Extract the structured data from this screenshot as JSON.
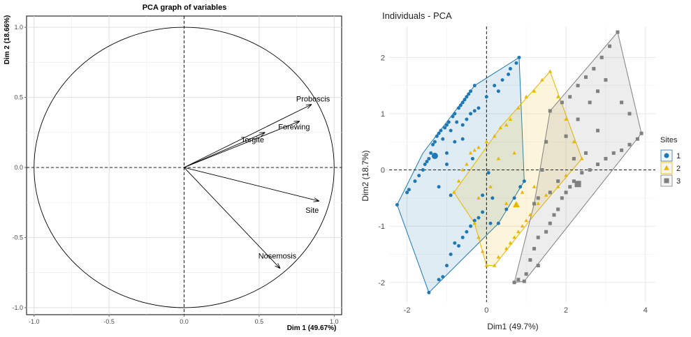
{
  "chart_data": [
    {
      "type": "scatter",
      "subtype": "pca-variable-correlation-circle",
      "title": "PCA graph of variables",
      "xlabel": "Dim 1 (49.67%)",
      "ylabel": "Dim 2 (18.66%)",
      "xlim": [
        -1.05,
        1.05
      ],
      "ylim": [
        -1.05,
        1.08
      ],
      "xticks": [
        -1.0,
        -0.5,
        0.0,
        0.5,
        1.0
      ],
      "yticks": [
        -1.0,
        -0.5,
        0.0,
        0.5,
        1.0
      ],
      "xtick_labels": [
        "-1.0",
        "-0.5",
        "0.0",
        "0.5",
        "1.0"
      ],
      "ytick_labels": [
        "-1.0",
        "-0.5",
        "0.0",
        "0.5",
        "1.0"
      ],
      "grid": true,
      "unit_circle": true,
      "variables": [
        {
          "name": "Proboscis",
          "x": 0.85,
          "y": 0.45
        },
        {
          "name": "Forewing",
          "x": 0.77,
          "y": 0.33
        },
        {
          "name": "Torgite",
          "x": 0.54,
          "y": 0.25
        },
        {
          "name": "Site",
          "x": 0.9,
          "y": -0.24
        },
        {
          "name": "Nosemosis",
          "x": 0.64,
          "y": -0.72
        }
      ]
    },
    {
      "type": "scatter",
      "title": "Individuals - PCA",
      "xlabel": "Dim1 (49.7%)",
      "ylabel": "Dim2 (18.7%)",
      "xlim": [
        -2.45,
        4.25
      ],
      "ylim": [
        -2.35,
        2.55
      ],
      "xticks": [
        -2,
        0,
        2,
        4
      ],
      "yticks": [
        -2,
        -1,
        0,
        1,
        2
      ],
      "xtick_labels": [
        "-2",
        "0",
        "2",
        "4"
      ],
      "ytick_labels": [
        "-2",
        "-1",
        "0",
        "1",
        "2"
      ],
      "grid": true,
      "legend": {
        "title": "Sites",
        "position": "right",
        "entries": [
          "1",
          "2",
          "3"
        ]
      },
      "series": [
        {
          "name": "1",
          "marker": "circle",
          "color": "#1f77b4",
          "hull": [
            [
              -2.25,
              -0.62
            ],
            [
              -1.45,
              -2.18
            ],
            [
              0.3,
              -0.95
            ],
            [
              0.95,
              -0.2
            ],
            [
              0.82,
              2.0
            ],
            [
              -0.3,
              1.5
            ],
            [
              -1.6,
              0.3
            ]
          ],
          "centroid": [
            -1.3,
            0.25
          ],
          "points": [
            [
              -2.25,
              -0.62
            ],
            [
              -2.0,
              -0.4
            ],
            [
              -1.95,
              -0.35
            ],
            [
              -1.8,
              -0.2
            ],
            [
              -1.7,
              -0.1
            ],
            [
              -1.6,
              0.0
            ],
            [
              -1.55,
              0.1
            ],
            [
              -1.5,
              0.15
            ],
            [
              -1.45,
              0.2
            ],
            [
              -1.4,
              0.3
            ],
            [
              -1.35,
              0.45
            ],
            [
              -1.3,
              0.5
            ],
            [
              -1.25,
              0.6
            ],
            [
              -1.2,
              0.65
            ],
            [
              -1.15,
              0.7
            ],
            [
              -1.1,
              0.55
            ],
            [
              -1.05,
              0.75
            ],
            [
              -1.0,
              0.8
            ],
            [
              -0.95,
              0.85
            ],
            [
              -0.9,
              0.7
            ],
            [
              -0.85,
              0.95
            ],
            [
              -0.8,
              1.0
            ],
            [
              -0.75,
              0.85
            ],
            [
              -0.7,
              1.1
            ],
            [
              -0.65,
              1.15
            ],
            [
              -0.6,
              1.2
            ],
            [
              -0.55,
              1.25
            ],
            [
              -0.5,
              1.3
            ],
            [
              -0.45,
              1.35
            ],
            [
              -0.4,
              1.4
            ],
            [
              -0.3,
              1.5
            ],
            [
              -0.6,
              0.8
            ],
            [
              -0.5,
              0.9
            ],
            [
              -0.4,
              1.0
            ],
            [
              -0.3,
              1.05
            ],
            [
              -0.2,
              1.1
            ],
            [
              0.0,
              1.3
            ],
            [
              0.2,
              1.5
            ],
            [
              0.4,
              1.6
            ],
            [
              0.6,
              1.8
            ],
            [
              0.75,
              1.9
            ],
            [
              0.82,
              2.0
            ],
            [
              0.55,
              1.7
            ],
            [
              0.3,
              1.4
            ],
            [
              -1.45,
              -2.18
            ],
            [
              -1.2,
              -1.95
            ],
            [
              -1.1,
              -1.9
            ],
            [
              -1.0,
              -1.7
            ],
            [
              -0.9,
              -1.5
            ],
            [
              -0.8,
              -1.3
            ],
            [
              -0.7,
              -1.35
            ],
            [
              -0.6,
              -1.2
            ],
            [
              -0.5,
              -1.1
            ],
            [
              -0.4,
              -1.0
            ],
            [
              -0.3,
              -0.9
            ],
            [
              -0.2,
              -0.85
            ],
            [
              -0.1,
              -0.75
            ],
            [
              0.1,
              -0.95
            ],
            [
              0.3,
              -0.95
            ],
            [
              0.5,
              -0.7
            ],
            [
              0.7,
              -0.5
            ],
            [
              0.85,
              -0.3
            ],
            [
              0.95,
              -0.2
            ],
            [
              -0.9,
              -0.45
            ],
            [
              -1.2,
              -0.3
            ],
            [
              -1.0,
              0.3
            ],
            [
              -0.8,
              0.5
            ],
            [
              -0.6,
              0.55
            ],
            [
              0.05,
              -0.05
            ],
            [
              -0.1,
              -0.45
            ],
            [
              0.15,
              -0.5
            ],
            [
              -0.35,
              0.2
            ],
            [
              -1.0,
              0.1
            ]
          ]
        },
        {
          "name": "2",
          "marker": "triangle",
          "color": "#e7b800",
          "hull": [
            [
              -0.82,
              -0.4
            ],
            [
              -0.3,
              -0.95
            ],
            [
              0.0,
              -1.7
            ],
            [
              0.2,
              -1.7
            ],
            [
              1.2,
              -0.8
            ],
            [
              2.4,
              0.2
            ],
            [
              1.6,
              1.75
            ],
            [
              0.4,
              0.8
            ]
          ],
          "centroid": [
            0.75,
            -0.62
          ],
          "points": [
            [
              -0.82,
              -0.4
            ],
            [
              -0.7,
              -0.2
            ],
            [
              -0.6,
              0.0
            ],
            [
              -0.5,
              0.1
            ],
            [
              -0.4,
              0.3
            ],
            [
              -0.3,
              0.35
            ],
            [
              -0.2,
              0.4
            ],
            [
              0.0,
              0.5
            ],
            [
              0.2,
              0.6
            ],
            [
              0.35,
              0.75
            ],
            [
              0.5,
              0.8
            ],
            [
              0.6,
              0.9
            ],
            [
              0.8,
              1.1
            ],
            [
              1.0,
              1.3
            ],
            [
              1.2,
              1.4
            ],
            [
              1.4,
              1.6
            ],
            [
              1.6,
              1.75
            ],
            [
              1.8,
              1.3
            ],
            [
              2.0,
              0.9
            ],
            [
              2.2,
              0.5
            ],
            [
              2.4,
              0.2
            ],
            [
              2.0,
              -0.1
            ],
            [
              1.8,
              -0.3
            ],
            [
              1.5,
              -0.45
            ],
            [
              1.3,
              -0.6
            ],
            [
              1.1,
              -0.8
            ],
            [
              1.0,
              -0.9
            ],
            [
              0.9,
              -1.0
            ],
            [
              0.8,
              -1.1
            ],
            [
              0.7,
              -1.2
            ],
            [
              0.6,
              -1.3
            ],
            [
              0.5,
              -1.4
            ],
            [
              0.3,
              -1.55
            ],
            [
              0.2,
              -1.7
            ],
            [
              0.0,
              -1.7
            ],
            [
              -0.1,
              -1.45
            ],
            [
              -0.2,
              -1.2
            ],
            [
              -0.3,
              -0.95
            ],
            [
              0.9,
              -0.4
            ],
            [
              1.2,
              -0.3
            ],
            [
              0.7,
              0.3
            ],
            [
              0.3,
              0.2
            ],
            [
              1.4,
              0.0
            ],
            [
              0.5,
              -0.6
            ],
            [
              0.1,
              -0.3
            ],
            [
              -0.2,
              -0.5
            ],
            [
              0.75,
              -0.62
            ]
          ]
        },
        {
          "name": "3",
          "marker": "square",
          "color": "#808080",
          "hull": [
            [
              0.7,
              -2.0
            ],
            [
              0.95,
              -1.98
            ],
            [
              3.9,
              0.65
            ],
            [
              3.3,
              2.45
            ],
            [
              1.6,
              1.05
            ],
            [
              1.2,
              -0.6
            ]
          ],
          "centroid": [
            2.3,
            -0.25
          ],
          "points": [
            [
              0.7,
              -2.0
            ],
            [
              0.8,
              -1.95
            ],
            [
              0.95,
              -1.98
            ],
            [
              1.1,
              -1.6
            ],
            [
              1.2,
              -1.4
            ],
            [
              1.3,
              -1.2
            ],
            [
              1.5,
              -1.1
            ],
            [
              1.6,
              -0.95
            ],
            [
              1.7,
              -0.8
            ],
            [
              1.8,
              -0.7
            ],
            [
              1.9,
              -0.5
            ],
            [
              2.0,
              -0.4
            ],
            [
              2.1,
              -0.3
            ],
            [
              2.2,
              -0.2
            ],
            [
              2.4,
              -0.05
            ],
            [
              2.6,
              0.0
            ],
            [
              2.8,
              0.1
            ],
            [
              3.0,
              0.2
            ],
            [
              3.2,
              0.3
            ],
            [
              3.4,
              0.35
            ],
            [
              3.6,
              0.45
            ],
            [
              3.8,
              0.55
            ],
            [
              3.9,
              0.65
            ],
            [
              3.3,
              2.45
            ],
            [
              3.1,
              2.2
            ],
            [
              2.9,
              2.0
            ],
            [
              2.7,
              1.8
            ],
            [
              2.5,
              1.65
            ],
            [
              2.3,
              1.5
            ],
            [
              2.1,
              1.3
            ],
            [
              1.9,
              1.2
            ],
            [
              1.6,
              1.05
            ],
            [
              1.5,
              0.5
            ],
            [
              1.4,
              0.0
            ],
            [
              1.3,
              -0.5
            ],
            [
              1.2,
              -0.6
            ],
            [
              2.0,
              0.6
            ],
            [
              2.3,
              0.9
            ],
            [
              2.6,
              1.2
            ],
            [
              2.8,
              1.4
            ],
            [
              3.0,
              1.6
            ],
            [
              2.5,
              0.3
            ],
            [
              2.8,
              0.7
            ],
            [
              1.8,
              -0.2
            ],
            [
              1.6,
              -0.4
            ],
            [
              2.2,
              0.2
            ],
            [
              3.4,
              1.2
            ],
            [
              3.6,
              1.0
            ],
            [
              1.3,
              -1.7
            ],
            [
              1.0,
              -1.85
            ],
            [
              2.3,
              -0.25
            ]
          ]
        }
      ]
    }
  ]
}
